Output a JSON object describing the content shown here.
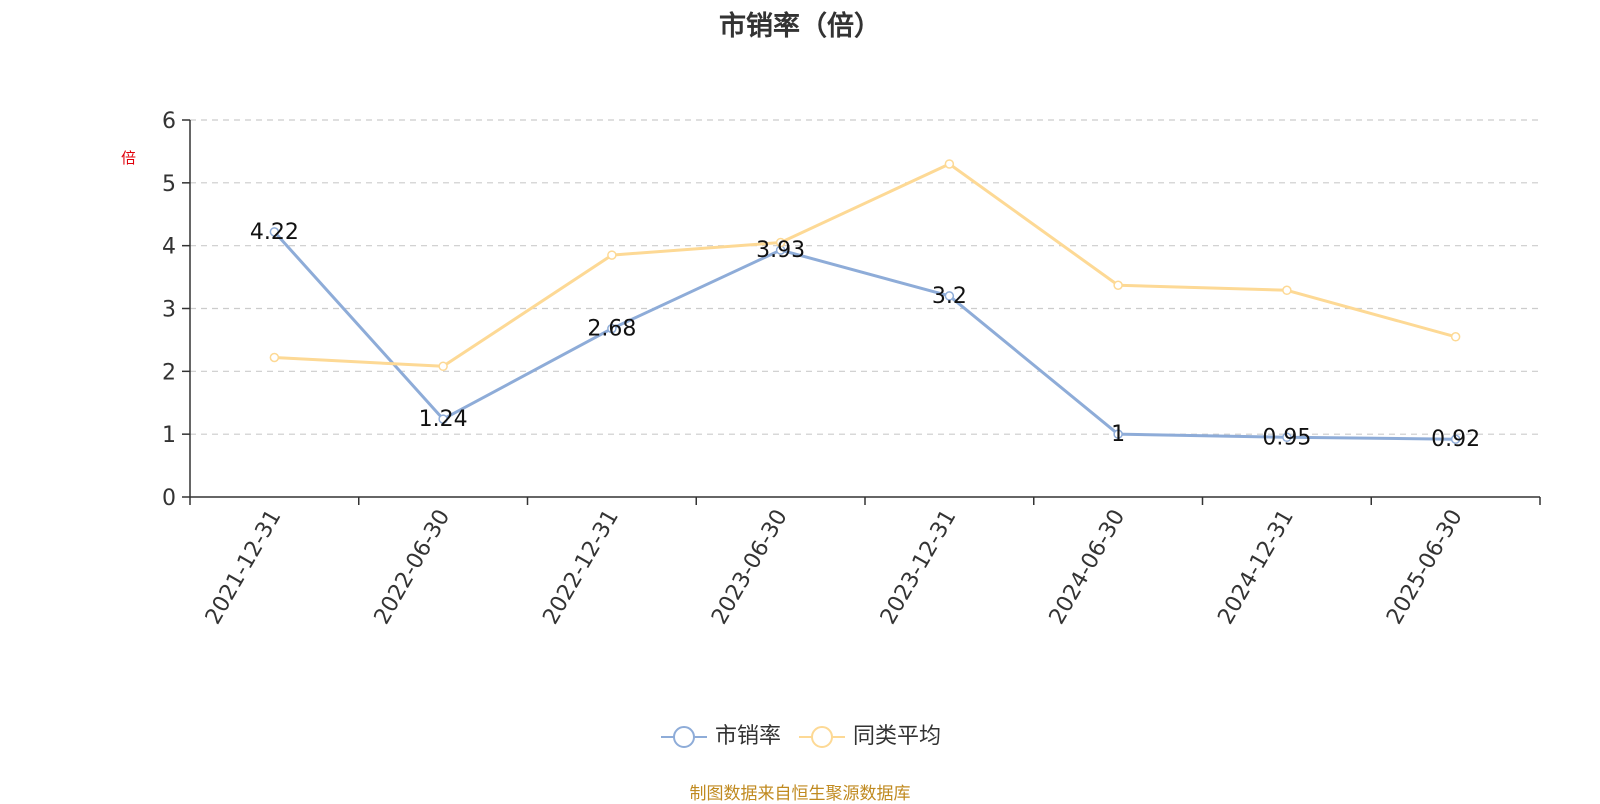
{
  "title": "市销率（倍）",
  "source": "制图数据来自恒生聚源数据库",
  "chart_data": {
    "type": "line",
    "title": "市销率（倍）",
    "ylabel": "倍",
    "ylim": [
      0,
      6
    ],
    "yticks": [
      0,
      1,
      2,
      3,
      4,
      5,
      6
    ],
    "grid": true,
    "legend_position": "bottom-center",
    "categories": [
      "2021-12-31",
      "2022-06-30",
      "2022-12-31",
      "2023-06-30",
      "2023-12-31",
      "2024-06-30",
      "2024-12-31",
      "2025-06-30"
    ],
    "series": [
      {
        "name": "市销率",
        "color": "#8eacd8",
        "values": [
          4.22,
          1.24,
          2.68,
          3.93,
          3.2,
          1,
          0.95,
          0.92
        ],
        "show_labels": true
      },
      {
        "name": "同类平均",
        "color": "#fdd995",
        "values": [
          2.22,
          2.08,
          3.85,
          4.05,
          5.3,
          3.37,
          3.29,
          2.55
        ],
        "show_labels": false
      }
    ]
  }
}
